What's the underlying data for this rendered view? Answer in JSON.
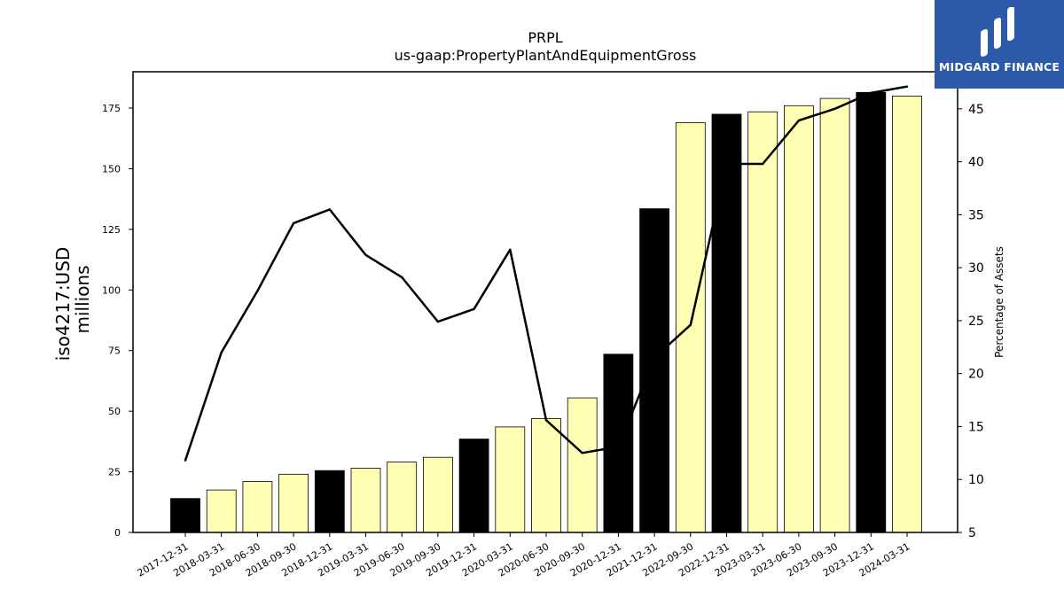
{
  "logo": {
    "text": "MIDGARD FINANCE"
  },
  "chart_data": {
    "type": "bar",
    "title": "PRPL",
    "subtitle": "us-gaap:PropertyPlantAndEquipmentGross",
    "ylabel": "iso4217:USD",
    "ylabel_unit": "millions",
    "y2label": "Percentage of Assets",
    "ylim": [
      0,
      190
    ],
    "y2lim": [
      5,
      48.5
    ],
    "yticks": [
      0,
      25,
      50,
      75,
      100,
      125,
      150,
      175
    ],
    "y2ticks": [
      5,
      10,
      15,
      20,
      25,
      30,
      35,
      40,
      45
    ],
    "categories": [
      "2017-12-31",
      "2018-03-31",
      "2018-06-30",
      "2018-09-30",
      "2018-12-31",
      "2019-03-31",
      "2019-06-30",
      "2019-09-30",
      "2019-12-31",
      "2020-03-31",
      "2020-06-30",
      "2020-09-30",
      "2020-12-31",
      "2021-12-31",
      "2022-09-30",
      "2022-12-31",
      "2023-03-31",
      "2023-06-30",
      "2023-09-30",
      "2023-12-31",
      "2024-03-31"
    ],
    "series": [
      {
        "type": "bar",
        "values": [
          14,
          17.5,
          21,
          24,
          25.5,
          26.5,
          29,
          31,
          38.5,
          43.5,
          47,
          55.5,
          73.5,
          133.5,
          169,
          172.5,
          173.5,
          176,
          179,
          181.5,
          180
        ],
        "annual": [
          true,
          false,
          false,
          false,
          true,
          false,
          false,
          false,
          true,
          false,
          false,
          false,
          true,
          true,
          false,
          true,
          false,
          false,
          false,
          true,
          false
        ],
        "colors": {
          "annual": "#000000",
          "quarter": "#ffffb3"
        }
      },
      {
        "type": "line",
        "axis": "right",
        "color": "#000000",
        "values": [
          11.8,
          22,
          27.8,
          34.2,
          35.5,
          31.2,
          29.1,
          24.9,
          26.1,
          31.7,
          15.6,
          12.5,
          13.1,
          21.5,
          24.6,
          39.8,
          39.8,
          43.9,
          45,
          46.5,
          47.1
        ]
      }
    ],
    "grid": false,
    "legend": "none"
  }
}
